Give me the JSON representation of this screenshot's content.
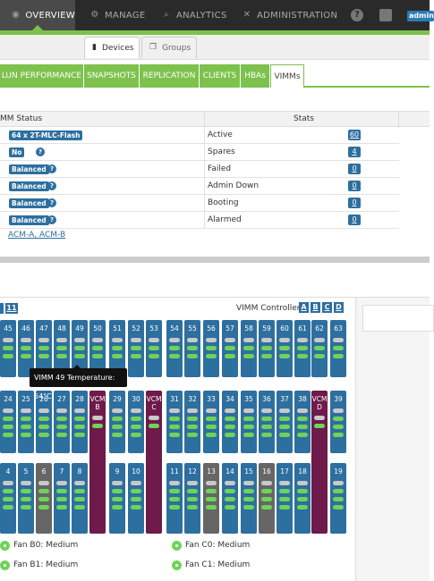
{
  "top_nav": {
    "overview": "OVERVIEW",
    "manage": "MANAGE",
    "analytics": "ANALYTICS",
    "administration": "ADMINISTRATION",
    "help": "?",
    "user": "admin"
  },
  "sub_tabs": {
    "devices": "Devices",
    "groups": "Groups"
  },
  "main_tabs": [
    "LUN PERFORMANCE",
    "SNAPSHOTS",
    "REPLICATION",
    "CLIENTS",
    "HBAs",
    "VIMMs"
  ],
  "status_table": {
    "col_status": "MM Status",
    "col_stats": "Stats",
    "rows": [
      {
        "badge": "64 x 2T-MLC-Flash",
        "help": false,
        "label": "Active",
        "value": "60"
      },
      {
        "badge": "No",
        "help": true,
        "label": "Spares",
        "value": "4"
      },
      {
        "badge": "Balanced",
        "help": true,
        "label": "Failed",
        "value": "0"
      },
      {
        "badge": "Balanced",
        "help": true,
        "label": "Admin Down",
        "value": "0"
      },
      {
        "badge": "Balanced",
        "help": true,
        "label": "Booting",
        "value": "0"
      },
      {
        "badge": "Balanced",
        "help": true,
        "label": "Alarmed",
        "value": "0"
      }
    ],
    "acm_a": "ACM-A",
    "acm_sep": ", ",
    "acm_b": "ACM-B"
  },
  "vimm_panel": {
    "page": "11",
    "controller_label": "VIMM Controller:",
    "controllers": [
      "A",
      "B",
      "C",
      "D"
    ],
    "tooltip": "VIMM 49 Temperature: 54°C"
  },
  "fans": [
    {
      "label": "Fan B0: Medium"
    },
    {
      "label": "Fan C0: Medium"
    },
    {
      "label": "Fan B1: Medium"
    },
    {
      "label": "Fan C1: Medium"
    }
  ],
  "colors": {
    "nav_dark": "#2a2a2a",
    "accent_green": "#7cc24c",
    "slot_blue": "#2d6f9f",
    "slot_purple": "#6e1a4a",
    "slot_gray": "#666666"
  }
}
